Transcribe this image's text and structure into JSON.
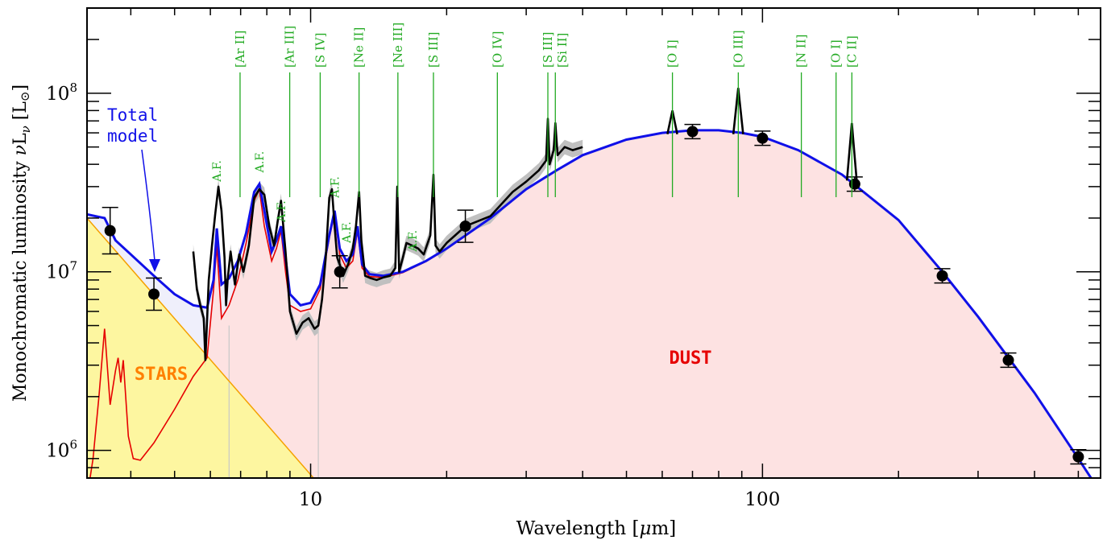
{
  "chart_data": {
    "type": "line",
    "xlabel_pre": "Wavelength [",
    "xlabel_mu": "μ",
    "xlabel_post": "m]",
    "ylabel_pre": "Monochromatic luminosity ",
    "ylabel_nu": "ν",
    "ylabel_mid": "L",
    "ylabel_sub": "ν",
    "ylabel_bracket_open": " [L",
    "ylabel_sun": "⊙",
    "ylabel_bracket_close": "]",
    "x_scale": "log",
    "y_scale": "log",
    "xlim": [
      3.2,
      560
    ],
    "ylim": [
      700000,
      300000000
    ],
    "x_ticks": [
      {
        "value": 10,
        "label": "10"
      },
      {
        "value": 100,
        "label": "100"
      }
    ],
    "y_ticks": [
      {
        "value": 1000000,
        "base": "10",
        "exp": "6"
      },
      {
        "value": 10000000,
        "base": "10",
        "exp": "7"
      },
      {
        "value": 100000000,
        "base": "10",
        "exp": "8"
      }
    ],
    "region_labels": {
      "stars": "STARS",
      "dust": "DUST"
    },
    "annotation": {
      "line1": "Total",
      "line2": "model"
    },
    "colors": {
      "total": "#1010e8",
      "dust_line": "#e60000",
      "dust_fill": "#fde2e2",
      "star_line": "#f5a000",
      "star_fill": "#fdf6a0",
      "observed": "#000000",
      "band": "#c0c0c0",
      "lines": "#22aa22",
      "stars_label": "#ff8000",
      "dust_label": "#e60000",
      "annotation": "#1010e8"
    },
    "emission_lines": [
      {
        "label": "[Ar II]",
        "wl": 6.98
      },
      {
        "label": "[Ar III]",
        "wl": 8.99
      },
      {
        "label": "[S IV]",
        "wl": 10.5
      },
      {
        "label": "[Ne II]",
        "wl": 12.8
      },
      {
        "label": "[Ne III]",
        "wl": 15.6
      },
      {
        "label": "[S III]",
        "wl": 18.7
      },
      {
        "label": "[O IV]",
        "wl": 25.9
      },
      {
        "label": "[S III]",
        "wl": 33.5
      },
      {
        "label": "[Si II]",
        "wl": 34.8
      },
      {
        "label": "[O I]",
        "wl": 63.2
      },
      {
        "label": "[O III]",
        "wl": 88.4
      },
      {
        "label": "[N II]",
        "wl": 121.9
      },
      {
        "label": "[O I]",
        "wl": 145.5
      },
      {
        "label": "[C II]",
        "wl": 157.7
      }
    ],
    "af_labels": [
      {
        "text": "A.F.",
        "wl": 6.2,
        "y": 32000000
      },
      {
        "text": "A.F.",
        "wl": 7.7,
        "y": 36000000
      },
      {
        "text": "A.F.",
        "wl": 8.6,
        "y": 19000000
      },
      {
        "text": "A.F.",
        "wl": 11.3,
        "y": 26000000
      },
      {
        "text": "A.F.",
        "wl": 12.0,
        "y": 14500000
      },
      {
        "text": "A.F.",
        "wl": 16.8,
        "y": 13000000
      }
    ],
    "photometry": [
      {
        "x": 3.6,
        "y": 17000000,
        "err": 0.13
      },
      {
        "x": 4.5,
        "y": 7500000,
        "err": 0.09
      },
      {
        "x": 11.6,
        "y": 10000000,
        "err": 0.09
      },
      {
        "x": 22.0,
        "y": 18000000,
        "err": 0.09
      },
      {
        "x": 70.0,
        "y": 61000000,
        "err": 0.04
      },
      {
        "x": 100.0,
        "y": 56000000,
        "err": 0.04
      },
      {
        "x": 160.0,
        "y": 31000000,
        "err": 0.04
      },
      {
        "x": 250.0,
        "y": 9500000,
        "err": 0.04
      },
      {
        "x": 350.0,
        "y": 3200000,
        "err": 0.04
      },
      {
        "x": 500.0,
        "y": 920000,
        "err": 0.04
      }
    ],
    "series": [
      {
        "name": "Total model",
        "x": [
          3.2,
          3.5,
          3.7,
          4.0,
          4.5,
          5.0,
          5.5,
          5.9,
          6.1,
          6.2,
          6.35,
          6.6,
          6.9,
          7.2,
          7.5,
          7.7,
          7.9,
          8.2,
          8.4,
          8.6,
          8.8,
          9.0,
          9.5,
          10.0,
          10.5,
          11.0,
          11.3,
          11.6,
          12.0,
          12.4,
          12.7,
          13.0,
          13.5,
          14.5,
          16,
          18,
          20,
          25,
          30,
          35,
          40,
          50,
          60,
          70,
          80,
          90,
          100,
          120,
          150,
          200,
          250,
          300,
          400,
          500,
          560
        ],
        "y": [
          21000000,
          20000000,
          15000000,
          12500000,
          9500000,
          7500000,
          6500000,
          6300000,
          9000000,
          17500000,
          8500000,
          9200000,
          11500000,
          16500000,
          28000000,
          31000000,
          22000000,
          13000000,
          15000000,
          18000000,
          12000000,
          7500000,
          6500000,
          6700000,
          8500000,
          16000000,
          22000000,
          13500000,
          11500000,
          12500000,
          18000000,
          11000000,
          9700000,
          9500000,
          10000000,
          11500000,
          13500000,
          20000000,
          29000000,
          37000000,
          45000000,
          55000000,
          60000000,
          62000000,
          62000000,
          60000000,
          57000000,
          48000000,
          35000000,
          19500000,
          10000000,
          5600000,
          2100000,
          900000,
          580000
        ]
      },
      {
        "name": "Dust",
        "x": [
          3.25,
          3.3,
          3.4,
          3.5,
          3.6,
          3.7,
          3.75,
          3.8,
          3.85,
          3.95,
          4.05,
          4.2,
          4.5,
          5.0,
          5.5,
          5.9,
          6.1,
          6.2,
          6.35,
          6.6,
          6.9,
          7.2,
          7.5,
          7.7,
          7.9,
          8.2,
          8.4,
          8.6,
          8.8,
          9.0,
          9.5,
          10.0,
          10.5,
          11.0,
          11.3,
          11.6,
          12.0,
          12.4,
          12.7,
          13.0,
          13.5,
          14.5,
          16,
          18,
          20,
          25,
          30,
          35,
          40,
          50,
          60,
          70,
          80,
          90,
          100,
          120,
          150,
          200,
          250,
          300,
          400,
          500,
          560
        ],
        "y": [
          700000,
          900000,
          2000000,
          4800000,
          1800000,
          2800000,
          3300000,
          2400000,
          3200000,
          1200000,
          900000,
          880000,
          1100000,
          1700000,
          2600000,
          3300000,
          8000000,
          14000000,
          5500000,
          6500000,
          9000000,
          14500000,
          25000000,
          29000000,
          18000000,
          11500000,
          13500000,
          17000000,
          10000000,
          6500000,
          6000000,
          6200000,
          8000000,
          15500000,
          21000000,
          12500000,
          10500000,
          11500000,
          17000000,
          10500000,
          9400000,
          9300000,
          9900000,
          11400000,
          13400000,
          19900000,
          28900000,
          36900000,
          44900000,
          54900000,
          59900000,
          61900000,
          61900000,
          59900000,
          56900000,
          47900000,
          34900000,
          19400000,
          9950000,
          5600000,
          2100000,
          900000,
          580000
        ]
      },
      {
        "name": "Stars",
        "x": [
          3.2,
          10.2
        ],
        "y": [
          20000000,
          690000
        ]
      },
      {
        "name": "Observed",
        "x": [
          5.5,
          5.6,
          5.7,
          5.8,
          5.85,
          5.95,
          6.05,
          6.15,
          6.25,
          6.35,
          6.45,
          6.5,
          6.55,
          6.65,
          6.8,
          6.95,
          7.1,
          7.3,
          7.5,
          7.7,
          7.9,
          8.1,
          8.3,
          8.45,
          8.6,
          8.8,
          9.0,
          9.3,
          9.6,
          9.9,
          10.2,
          10.4,
          10.6,
          10.8,
          11.0,
          11.15,
          11.3,
          11.45,
          11.6,
          11.8,
          12.1,
          12.4,
          12.6,
          12.8,
          12.95,
          13.2,
          13.6,
          14.0,
          14.5,
          15.0,
          15.4,
          15.55,
          15.7,
          16.0,
          16.3,
          16.8,
          17.3,
          17.8,
          18.4,
          18.7,
          18.9,
          19.3,
          20.0,
          22.0,
          25.0,
          28.0,
          30.0,
          32.0,
          33.2,
          33.5,
          33.8,
          34.5,
          34.8,
          35.2,
          36.5,
          38.0,
          40.0
        ],
        "y": [
          13000000,
          8000000,
          6500000,
          5500000,
          3200000,
          9000000,
          14000000,
          21000000,
          30000000,
          22000000,
          12000000,
          6500000,
          9000000,
          13000000,
          8500000,
          12500000,
          10000000,
          14000000,
          26000000,
          29000000,
          27000000,
          18000000,
          14000000,
          19000000,
          25000000,
          13000000,
          6000000,
          4500000,
          5200000,
          5500000,
          4800000,
          5000000,
          7000000,
          12000000,
          26000000,
          29000000,
          18000000,
          12000000,
          11000000,
          9500000,
          11000000,
          13500000,
          18000000,
          28000000,
          15000000,
          9500000,
          9200000,
          9000000,
          9300000,
          9500000,
          10500000,
          30000000,
          10000000,
          12000000,
          14500000,
          14000000,
          13500000,
          12500000,
          16000000,
          35000000,
          14000000,
          13000000,
          14500000,
          18000000,
          20500000,
          28000000,
          32000000,
          37000000,
          42000000,
          72000000,
          40000000,
          48000000,
          68000000,
          45000000,
          50000000,
          48000000,
          50000000
        ]
      }
    ]
  }
}
